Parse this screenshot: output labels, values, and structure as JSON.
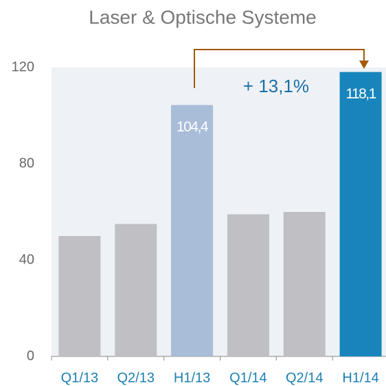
{
  "chart_data": {
    "type": "bar",
    "title": "Laser & Optische Systeme",
    "categories": [
      "Q1/13",
      "Q2/13",
      "H1/13",
      "Q1/14",
      "Q2/14",
      "H1/14"
    ],
    "values": [
      50,
      55,
      104.4,
      59,
      60,
      118.1
    ],
    "value_labels": [
      null,
      null,
      "104,4",
      null,
      null,
      "118,1"
    ],
    "colors": [
      "#c0c0c4",
      "#c0c0c4",
      "#a9bcd8",
      "#c0c0c4",
      "#c0c0c4",
      "#1785bb"
    ],
    "annotation": "+ 13,1%",
    "ylim": [
      0,
      120
    ],
    "yticks": [
      0,
      40,
      80,
      120
    ],
    "grid": false
  }
}
